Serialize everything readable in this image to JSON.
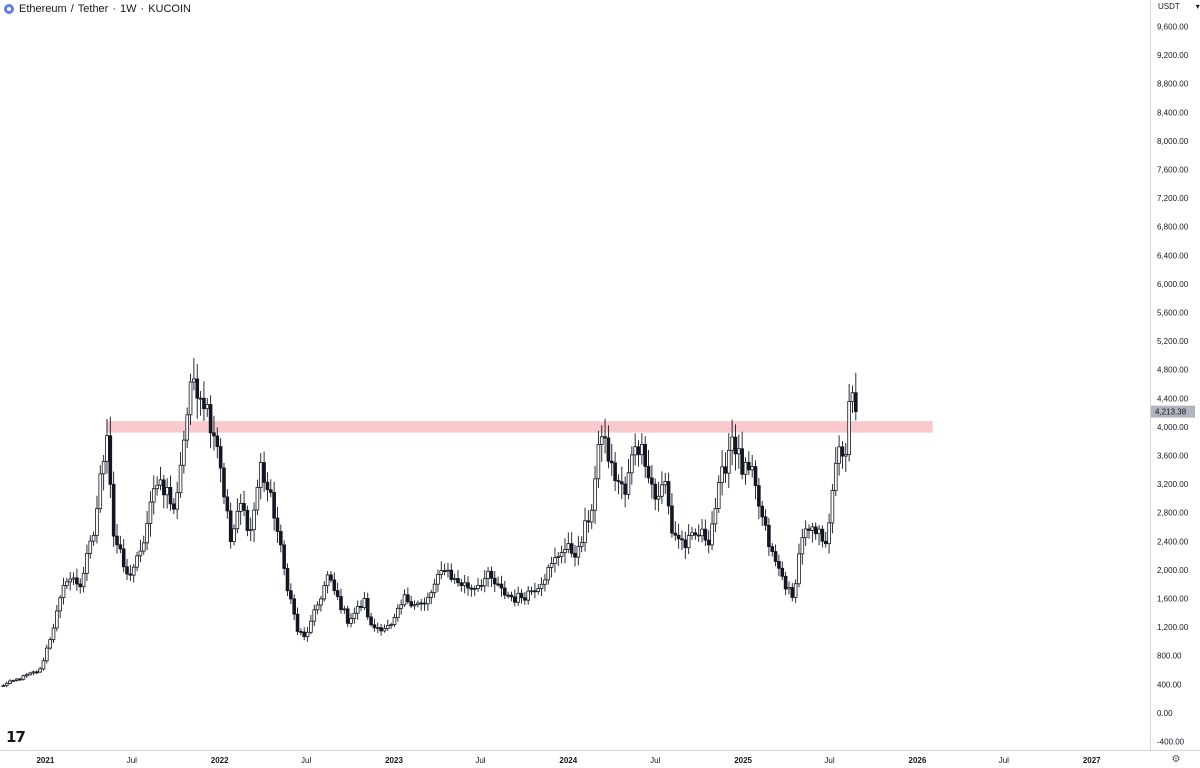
{
  "header": {
    "symbol": "Ethereum",
    "quote": "Tether",
    "interval": "1W",
    "exchange": "KUCOIN"
  },
  "price_axis": {
    "currency": "USDT",
    "dropdown_icon": "chevron-down-icon"
  },
  "colors": {
    "up": "#ffffff",
    "down": "#131722",
    "wick": "#131722",
    "zone": "#f7b7bd",
    "price_tag": "#b2b5be",
    "axis_line": "#d1d4dc"
  },
  "icons": {
    "logo": "tradingview-logo-icon",
    "settings": "gear-icon",
    "symbol": "ethereum-coin-icon"
  },
  "chart_data": {
    "type": "candlestick",
    "title": "Ethereum / Tether · 1W · KUCOIN",
    "y_axis": {
      "range": [
        -400,
        9600
      ],
      "ticks": [
        -400,
        0,
        400,
        800,
        1200,
        1600,
        2000,
        2400,
        2800,
        3200,
        3600,
        4000,
        4400,
        4800,
        5200,
        5600,
        6000,
        6400,
        6800,
        7200,
        7600,
        8000,
        8400,
        8800,
        9200,
        9600
      ],
      "tick_labels": [
        "-400.00",
        "0.00",
        "400.00",
        "800.00",
        "1,200.00",
        "1,600.00",
        "2,000.00",
        "2,400.00",
        "2,800.00",
        "3,200.00",
        "3,600.00",
        "4,000.00",
        "4,400.00",
        "4,800.00",
        "5,200.00",
        "5,600.00",
        "6,000.00",
        "6,400.00",
        "6,800.00",
        "7,200.00",
        "7,600.00",
        "8,000.00",
        "8,400.00",
        "8,800.00",
        "9,200.00",
        "9,600.00"
      ]
    },
    "x_axis": {
      "range": [
        "2020-09-28",
        "2027-05-03"
      ],
      "labels": [
        {
          "date": "2021-01-01",
          "text": "2021",
          "year": true
        },
        {
          "date": "2021-07-01",
          "text": "Jul",
          "year": false
        },
        {
          "date": "2022-01-01",
          "text": "2022",
          "year": true
        },
        {
          "date": "2022-07-01",
          "text": "Jul",
          "year": false
        },
        {
          "date": "2023-01-01",
          "text": "2023",
          "year": true
        },
        {
          "date": "2023-07-01",
          "text": "Jul",
          "year": false
        },
        {
          "date": "2024-01-01",
          "text": "2024",
          "year": true
        },
        {
          "date": "2024-07-01",
          "text": "Jul",
          "year": false
        },
        {
          "date": "2025-01-01",
          "text": "2025",
          "year": true
        },
        {
          "date": "2025-07-01",
          "text": "Jul",
          "year": false
        },
        {
          "date": "2026-01-01",
          "text": "2026",
          "year": true
        },
        {
          "date": "2026-07-01",
          "text": "Jul",
          "year": false
        },
        {
          "date": "2027-01-01",
          "text": "2027",
          "year": true
        }
      ]
    },
    "last_price": 4213.38,
    "last_price_label": "4,213.38",
    "zone": {
      "from_date": "2021-05-10",
      "to_date": "2026-02-02",
      "low": 3920,
      "high": 4080
    },
    "anchors": [
      [
        "2020-09-28",
        370
      ],
      [
        "2020-12-21",
        600
      ],
      [
        "2021-01-11",
        1050
      ],
      [
        "2021-02-15",
        1900
      ],
      [
        "2021-03-15",
        1800
      ],
      [
        "2021-04-12",
        2500
      ],
      [
        "2021-05-10",
        4000
      ],
      [
        "2021-05-24",
        2500
      ],
      [
        "2021-06-21",
        1900
      ],
      [
        "2021-07-19",
        2200
      ],
      [
        "2021-08-23",
        3300
      ],
      [
        "2021-09-13",
        3100
      ],
      [
        "2021-09-27",
        2800
      ],
      [
        "2021-10-25",
        4200
      ],
      [
        "2021-11-08",
        4700
      ],
      [
        "2021-11-29",
        4400
      ],
      [
        "2021-12-27",
        3800
      ],
      [
        "2022-01-24",
        2400
      ],
      [
        "2022-02-14",
        2900
      ],
      [
        "2022-03-07",
        2550
      ],
      [
        "2022-03-28",
        3450
      ],
      [
        "2022-04-25",
        2800
      ],
      [
        "2022-05-16",
        2000
      ],
      [
        "2022-06-13",
        1150
      ],
      [
        "2022-06-27",
        1050
      ],
      [
        "2022-07-11",
        1250
      ],
      [
        "2022-08-15",
        1900
      ],
      [
        "2022-09-05",
        1600
      ],
      [
        "2022-09-26",
        1300
      ],
      [
        "2022-10-31",
        1550
      ],
      [
        "2022-11-14",
        1200
      ],
      [
        "2022-12-26",
        1200
      ],
      [
        "2023-01-23",
        1600
      ],
      [
        "2023-03-06",
        1500
      ],
      [
        "2023-04-17",
        2050
      ],
      [
        "2023-05-08",
        1850
      ],
      [
        "2023-06-12",
        1750
      ],
      [
        "2023-07-17",
        1900
      ],
      [
        "2023-08-14",
        1700
      ],
      [
        "2023-09-11",
        1600
      ],
      [
        "2023-10-02",
        1650
      ],
      [
        "2023-10-30",
        1800
      ],
      [
        "2023-11-27",
        2050
      ],
      [
        "2023-12-18",
        2300
      ],
      [
        "2024-01-22",
        2250
      ],
      [
        "2024-02-19",
        2900
      ],
      [
        "2024-03-11",
        3950
      ],
      [
        "2024-04-01",
        3400
      ],
      [
        "2024-04-29",
        3050
      ],
      [
        "2024-05-20",
        3800
      ],
      [
        "2024-06-10",
        3600
      ],
      [
        "2024-07-01",
        3000
      ],
      [
        "2024-07-22",
        3200
      ],
      [
        "2024-08-05",
        2550
      ],
      [
        "2024-09-02",
        2350
      ],
      [
        "2024-09-30",
        2500
      ],
      [
        "2024-10-21",
        2450
      ],
      [
        "2024-11-11",
        3100
      ],
      [
        "2024-12-09",
        3900
      ],
      [
        "2024-12-30",
        3400
      ],
      [
        "2025-01-20",
        3300
      ],
      [
        "2025-02-10",
        2700
      ],
      [
        "2025-03-03",
        2200
      ],
      [
        "2025-03-31",
        1800
      ],
      [
        "2025-04-14",
        1580
      ],
      [
        "2025-05-05",
        2500
      ],
      [
        "2025-06-02",
        2500
      ],
      [
        "2025-06-23",
        2450
      ],
      [
        "2025-07-07",
        3000
      ],
      [
        "2025-07-21",
        3800
      ],
      [
        "2025-08-04",
        3500
      ],
      [
        "2025-08-11",
        4250
      ],
      [
        "2025-08-18",
        4400
      ],
      [
        "2025-08-25",
        4213.38
      ]
    ]
  }
}
